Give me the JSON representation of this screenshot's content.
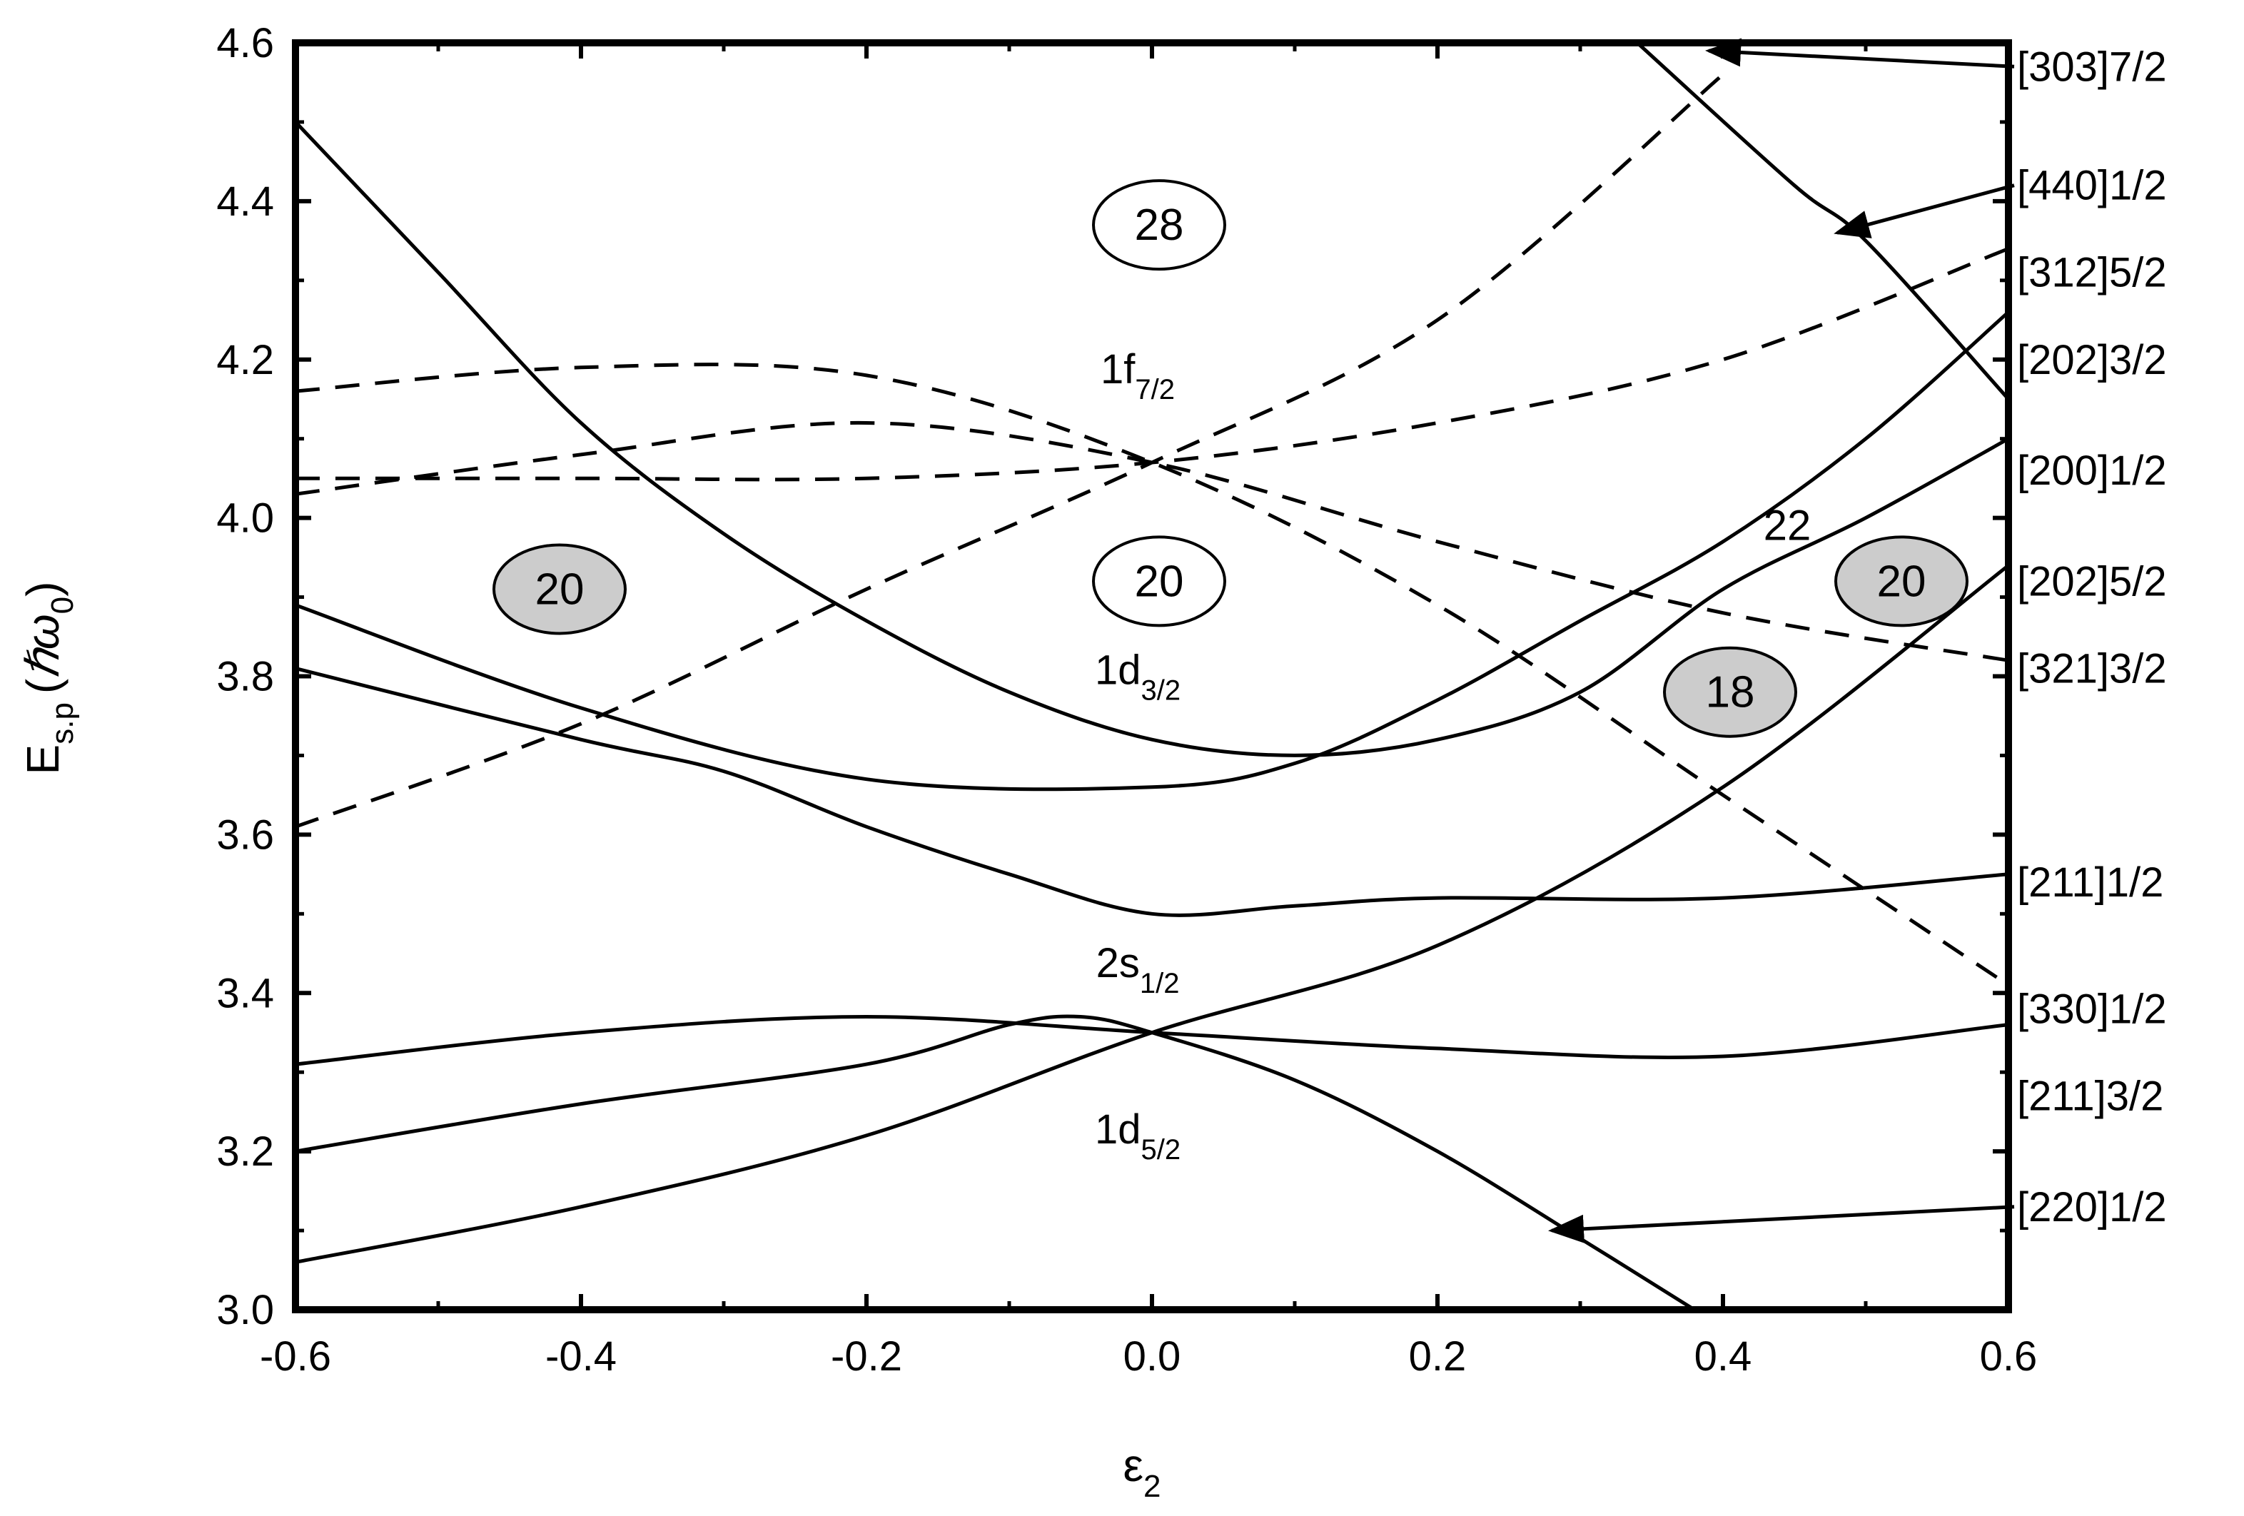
{
  "chart_data": {
    "type": "line",
    "title": "",
    "xlabel": "ε",
    "xlabel_sub": "2",
    "ylabel_main": "E",
    "ylabel_sub": "s.p",
    "ylabel_unit_open": "(",
    "ylabel_unit_hbar": "ℏ",
    "ylabel_unit_omega": "ω",
    "ylabel_unit_sub": "0",
    "ylabel_unit_close": ")",
    "xlim": [
      -0.6,
      0.6
    ],
    "ylim": [
      3.0,
      4.6
    ],
    "xticks": [
      "-0.6",
      "-0.4",
      "-0.2",
      "0.0",
      "0.2",
      "0.4",
      "0.6"
    ],
    "yticks": [
      "3.0",
      "3.2",
      "3.4",
      "3.6",
      "3.8",
      "4.0",
      "4.2",
      "4.4",
      "4.6"
    ],
    "grid": false,
    "series": [
      {
        "name": "[202]3/2",
        "style": "solid",
        "points": [
          [
            -0.6,
            3.89
          ],
          [
            -0.4,
            3.76
          ],
          [
            -0.2,
            3.67
          ],
          [
            0.0,
            3.66
          ],
          [
            0.1,
            3.69
          ],
          [
            0.2,
            3.77
          ],
          [
            0.3,
            3.87
          ],
          [
            0.4,
            3.97
          ],
          [
            0.5,
            4.1
          ],
          [
            0.6,
            4.26
          ]
        ]
      },
      {
        "name": "[200]1/2",
        "style": "solid",
        "points": [
          [
            -0.6,
            4.5
          ],
          [
            -0.5,
            4.31
          ],
          [
            -0.4,
            4.12
          ],
          [
            -0.3,
            3.98
          ],
          [
            -0.2,
            3.87
          ],
          [
            -0.1,
            3.78
          ],
          [
            0.0,
            3.72
          ],
          [
            0.1,
            3.7
          ],
          [
            0.2,
            3.72
          ],
          [
            0.3,
            3.78
          ],
          [
            0.4,
            3.91
          ],
          [
            0.5,
            4.0
          ],
          [
            0.6,
            4.1
          ]
        ]
      },
      {
        "name": "[202]5/2",
        "style": "solid",
        "points": [
          [
            -0.6,
            3.06
          ],
          [
            -0.4,
            3.13
          ],
          [
            -0.2,
            3.22
          ],
          [
            0.0,
            3.35
          ],
          [
            0.2,
            3.46
          ],
          [
            0.4,
            3.66
          ],
          [
            0.6,
            3.94
          ]
        ]
      },
      {
        "name": "[211]1/2",
        "style": "solid",
        "points": [
          [
            -0.6,
            3.81
          ],
          [
            -0.4,
            3.72
          ],
          [
            -0.3,
            3.68
          ],
          [
            -0.2,
            3.61
          ],
          [
            -0.1,
            3.55
          ],
          [
            0.0,
            3.5
          ],
          [
            0.1,
            3.51
          ],
          [
            0.2,
            3.52
          ],
          [
            0.4,
            3.52
          ],
          [
            0.6,
            3.55
          ]
        ]
      },
      {
        "name": "[211]3/2",
        "style": "solid",
        "points": [
          [
            -0.6,
            3.31
          ],
          [
            -0.4,
            3.35
          ],
          [
            -0.2,
            3.37
          ],
          [
            0.0,
            3.35
          ],
          [
            0.2,
            3.33
          ],
          [
            0.4,
            3.32
          ],
          [
            0.6,
            3.36
          ]
        ]
      },
      {
        "name": "[220]1/2",
        "style": "solid",
        "points": [
          [
            -0.6,
            3.2
          ],
          [
            -0.4,
            3.26
          ],
          [
            -0.2,
            3.31
          ],
          [
            -0.1,
            3.36
          ],
          [
            -0.05,
            3.37
          ],
          [
            0.0,
            3.35
          ],
          [
            0.1,
            3.29
          ],
          [
            0.2,
            3.2
          ],
          [
            0.3,
            3.09
          ],
          [
            0.38,
            3.0
          ]
        ]
      },
      {
        "name": "[440]1/2",
        "style": "solid",
        "points": [
          [
            0.34,
            4.6
          ],
          [
            0.45,
            4.42
          ],
          [
            0.5,
            4.35
          ],
          [
            0.6,
            4.15
          ]
        ]
      },
      {
        "name": "[303]7/2",
        "style": "dashed",
        "points": [
          [
            -0.6,
            3.61
          ],
          [
            -0.4,
            3.74
          ],
          [
            -0.2,
            3.91
          ],
          [
            0.0,
            4.07
          ],
          [
            0.2,
            4.25
          ],
          [
            0.4,
            4.56
          ]
        ]
      },
      {
        "name": "[312]5/2",
        "style": "dashed",
        "points": [
          [
            -0.6,
            4.05
          ],
          [
            -0.4,
            4.05
          ],
          [
            -0.2,
            4.05
          ],
          [
            0.0,
            4.07
          ],
          [
            0.2,
            4.12
          ],
          [
            0.4,
            4.2
          ],
          [
            0.6,
            4.34
          ]
        ]
      },
      {
        "name": "[321]3/2",
        "style": "dashed",
        "points": [
          [
            -0.6,
            4.03
          ],
          [
            -0.4,
            4.08
          ],
          [
            -0.2,
            4.12
          ],
          [
            0.0,
            4.07
          ],
          [
            0.2,
            3.97
          ],
          [
            0.4,
            3.88
          ],
          [
            0.6,
            3.82
          ]
        ]
      },
      {
        "name": "[330]1/2",
        "style": "dashed",
        "points": [
          [
            -0.6,
            4.16
          ],
          [
            -0.4,
            4.19
          ],
          [
            -0.2,
            4.18
          ],
          [
            0.0,
            4.07
          ],
          [
            0.2,
            3.89
          ],
          [
            0.4,
            3.65
          ],
          [
            0.6,
            3.41
          ]
        ]
      }
    ],
    "right_labels": [
      {
        "text": "[303]7/2",
        "y": 4.57
      },
      {
        "text": "[440]1/2",
        "y": 4.42
      },
      {
        "text": "[312]5/2",
        "y": 4.31
      },
      {
        "text": "[202]3/2",
        "y": 4.2
      },
      {
        "text": "[200]1/2",
        "y": 4.06
      },
      {
        "text": "[202]5/2",
        "y": 3.92
      },
      {
        "text": "[321]3/2",
        "y": 3.81
      },
      {
        "text": "[211]1/2",
        "y": 3.54
      },
      {
        "text": "[330]1/2",
        "y": 3.38
      },
      {
        "text": "[211]3/2",
        "y": 3.27
      },
      {
        "text": "[220]1/2",
        "y": 3.13
      }
    ],
    "arrows": [
      {
        "from": [
          0.6,
          4.57
        ],
        "to": [
          0.39,
          4.59
        ]
      },
      {
        "from": [
          0.6,
          4.42
        ],
        "to": [
          0.48,
          4.36
        ]
      },
      {
        "from": [
          0.6,
          3.13
        ],
        "to": [
          0.28,
          3.1
        ]
      }
    ],
    "orbital_labels": [
      {
        "main": "1f",
        "sub": "7/2",
        "x": -0.01,
        "y": 4.17
      },
      {
        "main": "1d",
        "sub": "3/2",
        "x": -0.01,
        "y": 3.79
      },
      {
        "main": "2s",
        "sub": "1/2",
        "x": -0.01,
        "y": 3.42
      },
      {
        "main": "1d",
        "sub": "5/2",
        "x": -0.01,
        "y": 3.21
      }
    ],
    "magic_numbers": [
      {
        "text": "28",
        "x": 0.005,
        "y": 4.37,
        "filled": false
      },
      {
        "text": "20",
        "x": 0.005,
        "y": 3.92,
        "filled": false
      },
      {
        "text": "20",
        "x": -0.415,
        "y": 3.91,
        "filled": true
      },
      {
        "text": "20",
        "x": 0.525,
        "y": 3.92,
        "filled": true
      },
      {
        "text": "18",
        "x": 0.405,
        "y": 3.78,
        "filled": true
      }
    ],
    "annotations": [
      {
        "text": "22",
        "x": 0.445,
        "y": 3.99
      }
    ]
  }
}
